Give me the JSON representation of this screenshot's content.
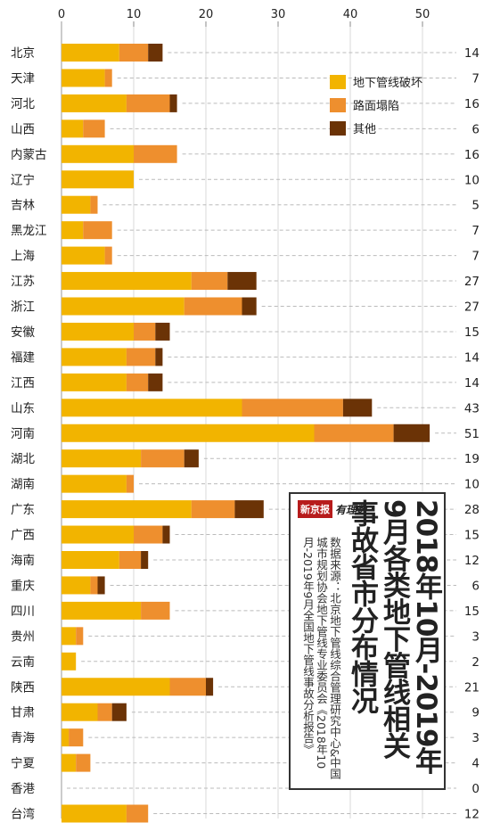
{
  "chart_data": {
    "type": "bar",
    "orientation": "horizontal",
    "stacked": true,
    "title": "2018年10月-2019年9月各类地下管线相关事故省市分布情况",
    "source_label": "数据来源：北京地下管线综合管理研究中心&中国城市规划协会地下管线专业委员会《2018年10月-2019年9月全国地下管线事故分析报告》",
    "brand": {
      "name": "新京报",
      "sub": "有理数"
    },
    "xlim": [
      0,
      52
    ],
    "xticks": [
      0,
      10,
      20,
      30,
      40,
      50
    ],
    "legend_position": "top-right",
    "categories": [
      "北京",
      "天津",
      "河北",
      "山西",
      "内蒙古",
      "辽宁",
      "吉林",
      "黑龙江",
      "上海",
      "江苏",
      "浙江",
      "安徽",
      "福建",
      "江西",
      "山东",
      "河南",
      "湖北",
      "湖南",
      "广东",
      "广西",
      "海南",
      "重庆",
      "四川",
      "贵州",
      "云南",
      "陕西",
      "甘肃",
      "青海",
      "宁夏",
      "香港",
      "台湾"
    ],
    "totals": [
      14,
      7,
      16,
      6,
      16,
      10,
      5,
      7,
      7,
      27,
      27,
      15,
      14,
      14,
      43,
      51,
      19,
      10,
      28,
      15,
      12,
      6,
      15,
      3,
      2,
      21,
      9,
      3,
      4,
      0,
      12
    ],
    "series": [
      {
        "name": "地下管线破坏",
        "color": "#f2b400",
        "values": [
          8,
          6,
          9,
          3,
          10,
          10,
          4,
          3,
          6,
          18,
          17,
          10,
          9,
          9,
          25,
          35,
          11,
          9,
          18,
          10,
          8,
          4,
          11,
          2,
          2,
          15,
          5,
          1,
          2,
          0,
          9
        ]
      },
      {
        "name": "路面塌陷",
        "color": "#ee8f2e",
        "values": [
          4,
          1,
          6,
          3,
          6,
          0,
          1,
          4,
          1,
          5,
          8,
          3,
          4,
          3,
          14,
          11,
          6,
          1,
          6,
          4,
          3,
          1,
          4,
          1,
          0,
          5,
          2,
          2,
          2,
          0,
          3
        ]
      },
      {
        "name": "其他",
        "color": "#6b3306",
        "values": [
          2,
          0,
          1,
          0,
          0,
          0,
          0,
          0,
          0,
          4,
          2,
          2,
          1,
          2,
          4,
          5,
          2,
          0,
          4,
          1,
          1,
          1,
          0,
          0,
          0,
          1,
          2,
          0,
          0,
          0,
          0
        ]
      }
    ]
  }
}
